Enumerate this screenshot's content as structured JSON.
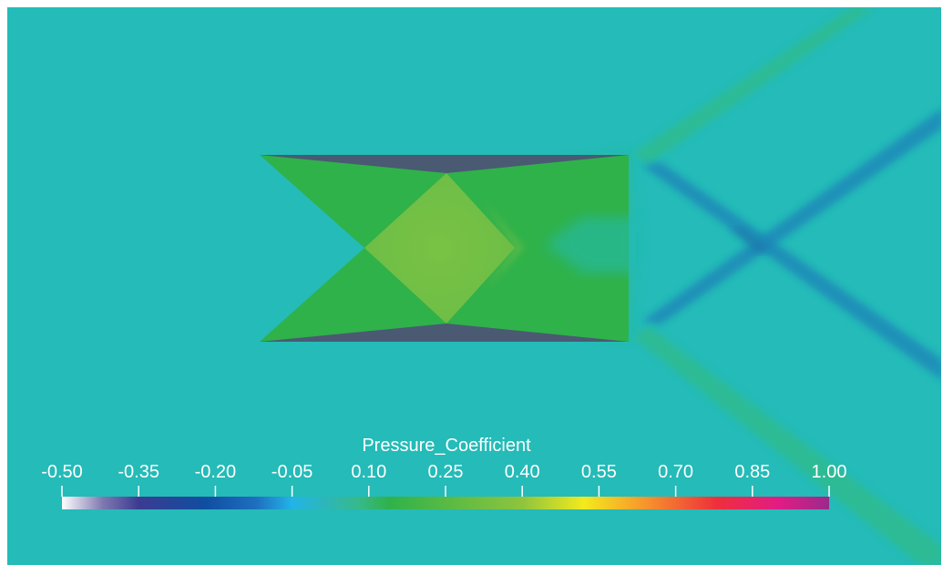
{
  "colorbar": {
    "title": "Pressure_Coefficient",
    "ticks": [
      "-0.50",
      "-0.35",
      "-0.20",
      "-0.05",
      "0.10",
      "0.25",
      "0.40",
      "0.55",
      "0.70",
      "0.85",
      "1.00"
    ],
    "range": [
      -0.5,
      1.0
    ],
    "stops": [
      {
        "value": -0.5,
        "color": "#ffffff"
      },
      {
        "value": -0.42,
        "color": "#7f78b0"
      },
      {
        "value": -0.35,
        "color": "#3b3c92"
      },
      {
        "value": -0.22,
        "color": "#0f4ea0"
      },
      {
        "value": -0.12,
        "color": "#1e6fc0"
      },
      {
        "value": -0.05,
        "color": "#22b4e6"
      },
      {
        "value": 0.08,
        "color": "#37b98b"
      },
      {
        "value": 0.14,
        "color": "#2fb24a"
      },
      {
        "value": 0.4,
        "color": "#8ec43e"
      },
      {
        "value": 0.52,
        "color": "#f2ea1e"
      },
      {
        "value": 0.62,
        "color": "#f7a42a"
      },
      {
        "value": 0.78,
        "color": "#ee2f3c"
      },
      {
        "value": 0.9,
        "color": "#e21c84"
      },
      {
        "value": 1.0,
        "color": "#9a2a8c"
      }
    ]
  },
  "field_colors": {
    "background": "#24bbb8",
    "compression": "#2fb24a",
    "stagnation": "#6fbe45",
    "expansion": "#4a5a72",
    "shock_light": "#2dbb90",
    "shock_dark": "#1f86b8",
    "frame": "#ffffff"
  }
}
